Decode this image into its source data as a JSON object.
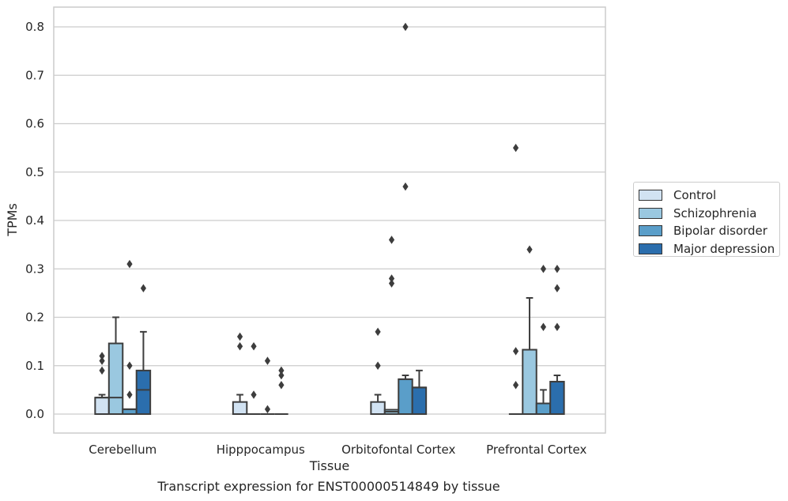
{
  "chart_data": {
    "type": "box",
    "title": "",
    "xlabel": "Tissue",
    "ylabel": "TPMs",
    "ylim": [
      -0.04,
      0.84
    ],
    "yticks": [
      "0.0",
      "0.1",
      "0.2",
      "0.3",
      "0.4",
      "0.5",
      "0.6",
      "0.7",
      "0.8"
    ],
    "categories": [
      "Cerebellum",
      "Hipppocampus",
      "Orbitofontal Cortex",
      "Prefrontal Cortex"
    ],
    "grid": true,
    "legend_position": "right",
    "series": [
      {
        "name": "Control",
        "color": "#d1e2f2",
        "boxes": [
          {
            "q1": 0.0,
            "median": 0.034,
            "q3": 0.034,
            "whisker_low": 0.0,
            "whisker_high": 0.04,
            "outliers": [
              0.09,
              0.11,
              0.12
            ]
          },
          {
            "q1": 0.0,
            "median": 0.0,
            "q3": 0.025,
            "whisker_low": 0.0,
            "whisker_high": 0.04,
            "outliers": [
              0.14,
              0.16
            ]
          },
          {
            "q1": 0.0,
            "median": 0.0,
            "q3": 0.025,
            "whisker_low": 0.0,
            "whisker_high": 0.04,
            "outliers": [
              0.1,
              0.17
            ]
          },
          {
            "q1": 0.0,
            "median": 0.0,
            "q3": 0.0,
            "whisker_low": 0.0,
            "whisker_high": 0.0,
            "outliers": [
              0.06,
              0.13,
              0.55
            ]
          }
        ]
      },
      {
        "name": "Schizophrenia",
        "color": "#9ac8e0",
        "boxes": [
          {
            "q1": 0.0,
            "median": 0.034,
            "q3": 0.146,
            "whisker_low": 0.0,
            "whisker_high": 0.2,
            "outliers": []
          },
          {
            "q1": 0.0,
            "median": 0.0,
            "q3": 0.0,
            "whisker_low": 0.0,
            "whisker_high": 0.0,
            "outliers": [
              0.04,
              0.14
            ]
          },
          {
            "q1": 0.0,
            "median": 0.005,
            "q3": 0.009,
            "whisker_low": 0.0,
            "whisker_high": 0.009,
            "outliers": [
              0.27,
              0.28,
              0.36
            ]
          },
          {
            "q1": 0.0,
            "median": 0.0,
            "q3": 0.133,
            "whisker_low": 0.0,
            "whisker_high": 0.24,
            "outliers": [
              0.34
            ]
          }
        ]
      },
      {
        "name": "Bipolar disorder",
        "color": "#5a9ec9",
        "boxes": [
          {
            "q1": 0.0,
            "median": 0.01,
            "q3": 0.01,
            "whisker_low": 0.0,
            "whisker_high": 0.01,
            "outliers": [
              0.04,
              0.1,
              0.31
            ]
          },
          {
            "q1": 0.0,
            "median": 0.0,
            "q3": 0.0,
            "whisker_low": 0.0,
            "whisker_high": 0.0,
            "outliers": [
              0.01,
              0.11
            ]
          },
          {
            "q1": 0.0,
            "median": 0.072,
            "q3": 0.072,
            "whisker_low": 0.0,
            "whisker_high": 0.08,
            "outliers": [
              0.47,
              0.8
            ]
          },
          {
            "q1": 0.0,
            "median": 0.022,
            "q3": 0.022,
            "whisker_low": 0.0,
            "whisker_high": 0.05,
            "outliers": [
              0.18,
              0.3
            ]
          }
        ]
      },
      {
        "name": "Major depression",
        "color": "#2b6ead",
        "boxes": [
          {
            "q1": 0.0,
            "median": 0.05,
            "q3": 0.09,
            "whisker_low": 0.0,
            "whisker_high": 0.17,
            "outliers": [
              0.26
            ]
          },
          {
            "q1": 0.0,
            "median": 0.0,
            "q3": 0.0,
            "whisker_low": 0.0,
            "whisker_high": 0.0,
            "outliers": [
              0.06,
              0.08,
              0.09
            ]
          },
          {
            "q1": 0.0,
            "median": 0.055,
            "q3": 0.055,
            "whisker_low": 0.0,
            "whisker_high": 0.09,
            "outliers": []
          },
          {
            "q1": 0.0,
            "median": 0.067,
            "q3": 0.067,
            "whisker_low": 0.0,
            "whisker_high": 0.08,
            "outliers": [
              0.18,
              0.26,
              0.3
            ]
          }
        ]
      }
    ]
  },
  "caption": "Transcript expression for ENST00000514849 by tissue",
  "legend": {
    "items": [
      "Control",
      "Schizophrenia",
      "Bipolar disorder",
      "Major depression"
    ]
  }
}
